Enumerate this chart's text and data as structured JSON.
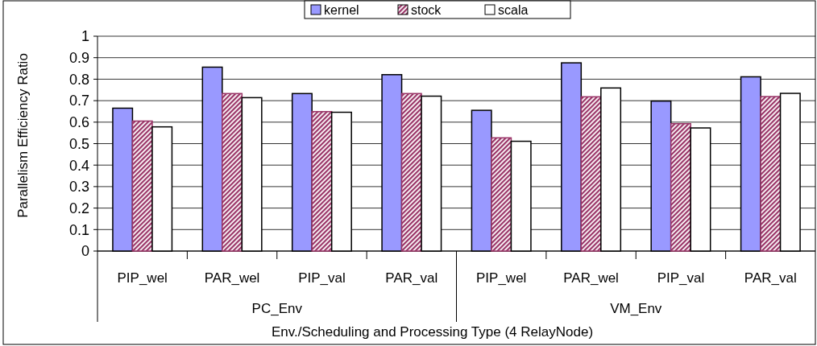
{
  "chart_data": {
    "type": "bar",
    "ylabel": "Parallelism Efficiency Ratio",
    "xlabel": "Env./Scheduling and Processing Type (4 RelayNode)",
    "categories": [
      "PIP_wel",
      "PAR_wel",
      "PIP_val",
      "PAR_val",
      "PIP_wel",
      "PAR_wel",
      "PIP_val",
      "PAR_val"
    ],
    "annotations": [
      "PC_Env",
      "VM_Env"
    ],
    "series": [
      {
        "name": "kernel",
        "color": "#9999ff",
        "values": [
          0.665,
          0.856,
          0.733,
          0.821,
          0.655,
          0.876,
          0.698,
          0.811
        ]
      },
      {
        "name": "stock",
        "color": "#993366",
        "values": [
          0.605,
          0.733,
          0.649,
          0.733,
          0.527,
          0.718,
          0.593,
          0.719
        ]
      },
      {
        "name": "scala",
        "color": "#ffffff",
        "values": [
          0.578,
          0.714,
          0.646,
          0.721,
          0.511,
          0.759,
          0.573,
          0.734
        ]
      }
    ],
    "ylim": [
      0,
      1
    ],
    "yticks": [
      0,
      0.1,
      0.2,
      0.3,
      0.4,
      0.5,
      0.6,
      0.7,
      0.8,
      0.9,
      1
    ],
    "grid": "y",
    "legend": "top"
  }
}
